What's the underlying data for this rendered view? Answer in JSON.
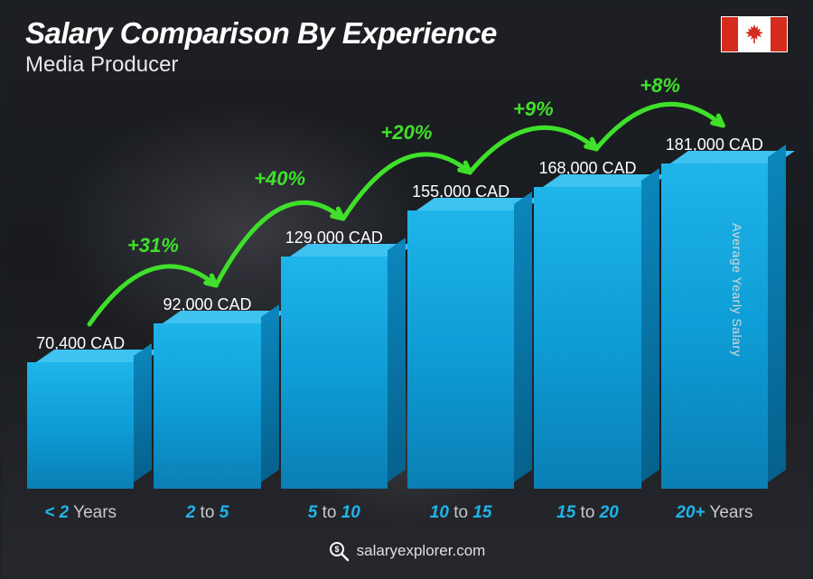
{
  "header": {
    "title": "Salary Comparison By Experience",
    "subtitle": "Media Producer",
    "flag": "canada"
  },
  "chart": {
    "type": "bar",
    "y_axis_label": "Average Yearly Salary",
    "max_value": 181000,
    "bar_colors": {
      "top_face": "#3ec2f0",
      "front_top": "#1fb4ea",
      "front_mid": "#0e9dd6",
      "front_bot": "#0a7fb5",
      "side_top": "#0b86bd",
      "side_bot": "#06618d"
    },
    "value_label_color": "#ffffff",
    "value_label_fontsize": 18,
    "xlabel_highlight_color": "#1fb4ea",
    "xlabel_dim_color": "#c9c9c9",
    "xlabel_fontsize": 19,
    "arc_color": "#3fe02a",
    "bars": [
      {
        "value": 70400,
        "label": "70,400 CAD",
        "x_hl_pre": "< 2",
        "x_dim": " Years",
        "x_hl_post": ""
      },
      {
        "value": 92000,
        "label": "92,000 CAD",
        "x_hl_pre": "2",
        "x_dim": " to ",
        "x_hl_post": "5"
      },
      {
        "value": 129000,
        "label": "129,000 CAD",
        "x_hl_pre": "5",
        "x_dim": " to ",
        "x_hl_post": "10"
      },
      {
        "value": 155000,
        "label": "155,000 CAD",
        "x_hl_pre": "10",
        "x_dim": " to ",
        "x_hl_post": "15"
      },
      {
        "value": 168000,
        "label": "168,000 CAD",
        "x_hl_pre": "15",
        "x_dim": " to ",
        "x_hl_post": "20"
      },
      {
        "value": 181000,
        "label": "181,000 CAD",
        "x_hl_pre": "20+",
        "x_dim": " Years",
        "x_hl_post": ""
      }
    ],
    "arcs": [
      {
        "label": "+31%"
      },
      {
        "label": "+40%"
      },
      {
        "label": "+20%"
      },
      {
        "label": "+9%"
      },
      {
        "label": "+8%"
      }
    ]
  },
  "footer": {
    "site": "salaryexplorer.com"
  }
}
